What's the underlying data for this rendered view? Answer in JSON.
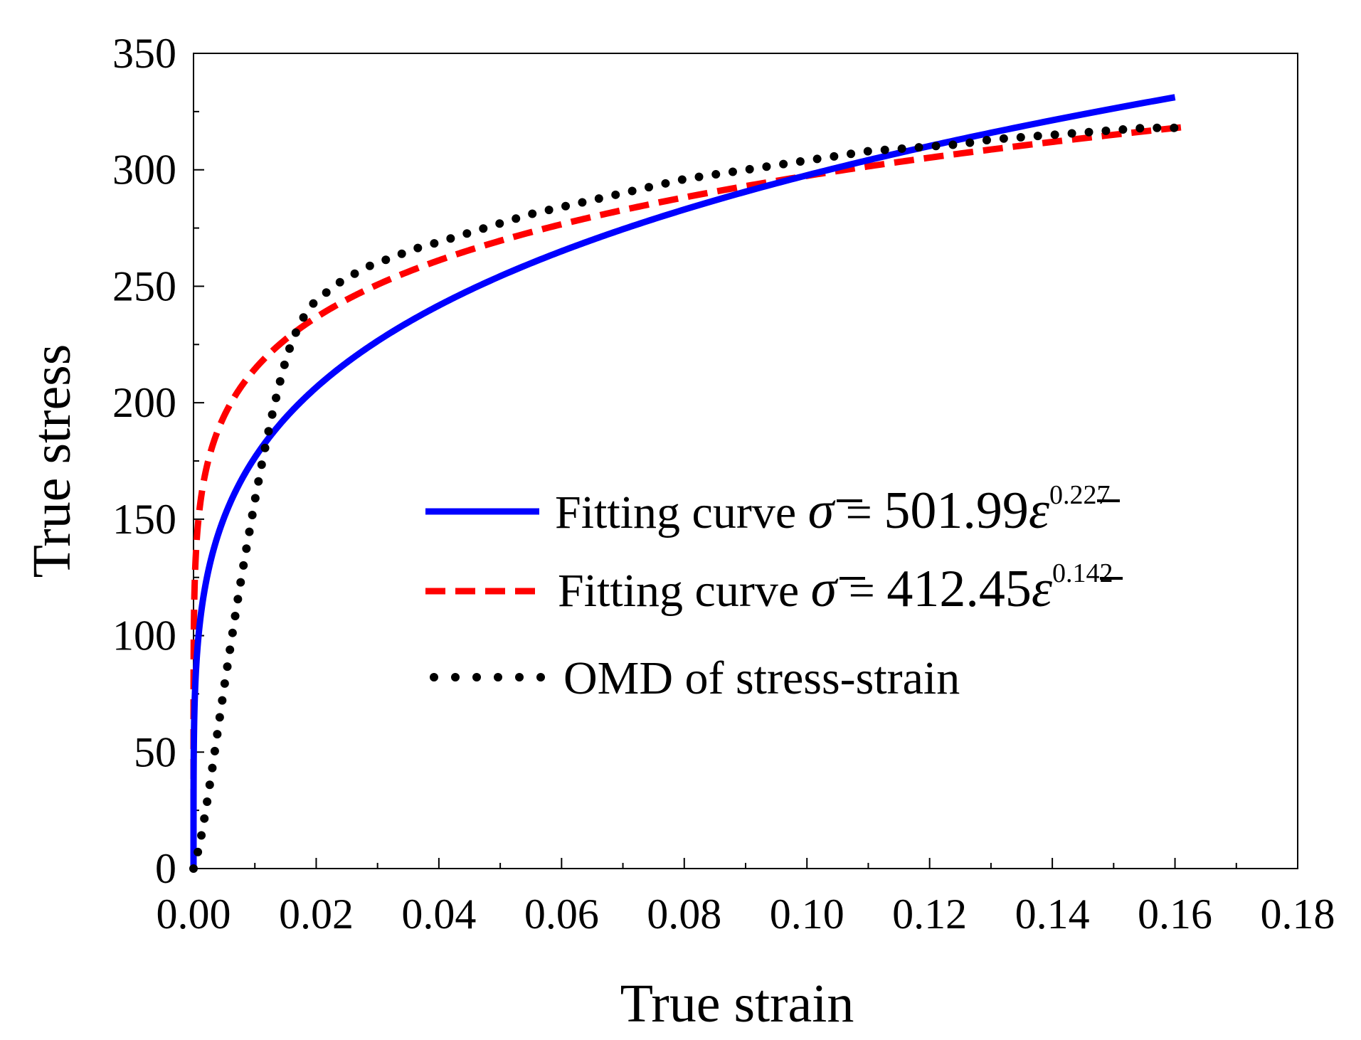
{
  "chart_data": {
    "type": "line",
    "title": "",
    "xlabel": "True strain",
    "ylabel": "True stress",
    "xlim": [
      0,
      0.18
    ],
    "ylim": [
      0,
      350
    ],
    "grid": false,
    "x_ticks": [
      "0.00",
      "0.02",
      "0.04",
      "0.06",
      "0.08",
      "0.10",
      "0.12",
      "0.14",
      "0.16",
      "0.18"
    ],
    "y_ticks": [
      "0",
      "50",
      "100",
      "150",
      "200",
      "250",
      "300",
      "350"
    ],
    "legend_position": "center-right",
    "series": [
      {
        "name": "Fitting curve 501.99 power 0.227",
        "legend_prefix": "Fitting curve ",
        "sigma": "σ",
        "equals": " = ",
        "coefficient": "501.99",
        "epsilon": "ε",
        "exponent": "0.227",
        "K": 501.99,
        "n": 0.227,
        "color": "#0000ff",
        "style": "solid",
        "x_end": 0.16
      },
      {
        "name": "Fitting curve 412.45 power 0.142",
        "legend_prefix": "Fitting curve ",
        "sigma": "σ",
        "equals": " = ",
        "coefficient": "412.45",
        "epsilon": "ε",
        "exponent": "0.142",
        "K": 412.45,
        "n": 0.142,
        "color": "#ff0000",
        "style": "dashed",
        "x_end": 0.162
      },
      {
        "name": "OMD of stress-strain",
        "legend_label": "OMD of stress-strain",
        "color": "#000000",
        "style": "dotted",
        "x": [
          0.0,
          0.001,
          0.002,
          0.003,
          0.004,
          0.005,
          0.006,
          0.007,
          0.008,
          0.009,
          0.01,
          0.011,
          0.012,
          0.013,
          0.014,
          0.015,
          0.016,
          0.017,
          0.018,
          0.019,
          0.02,
          0.022,
          0.024,
          0.026,
          0.028,
          0.03,
          0.033,
          0.036,
          0.04,
          0.045,
          0.05,
          0.055,
          0.06,
          0.065,
          0.07,
          0.075,
          0.08,
          0.085,
          0.09,
          0.095,
          0.1,
          0.105,
          0.11,
          0.115,
          0.12,
          0.125,
          0.13,
          0.135,
          0.14,
          0.145,
          0.15,
          0.155,
          0.16
        ],
        "y": [
          0,
          10,
          25,
          42,
          60,
          78,
          95,
          112,
          128,
          143,
          158,
          172,
          185,
          197,
          208,
          218,
          226,
          232,
          237,
          241,
          244,
          248,
          252,
          255,
          258,
          260,
          263,
          266,
          269,
          273,
          277,
          281,
          284,
          287,
          290,
          293,
          296,
          298,
          300,
          302,
          304,
          306,
          308,
          309,
          310,
          311,
          313,
          314,
          315,
          316,
          317,
          318,
          318
        ]
      }
    ]
  }
}
